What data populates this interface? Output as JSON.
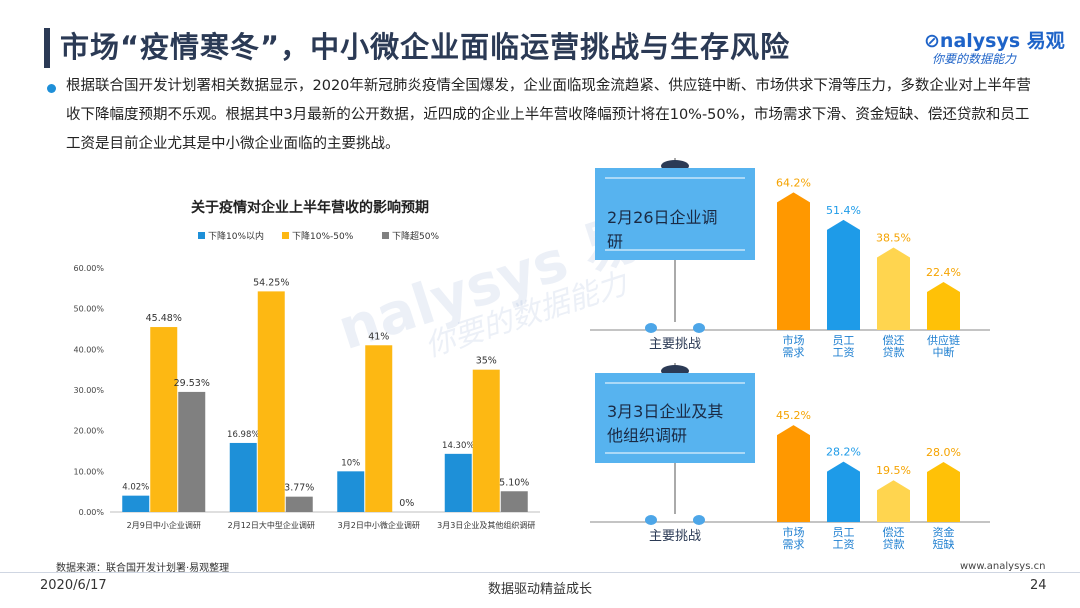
{
  "title": "市场“疫情寒冬”，中小微企业面临运营挑战与生存风险",
  "logo": {
    "brand_prefix": "nalysys",
    "brand_cn": "易观",
    "slogan": "你要的数据能力"
  },
  "paragraph": "根据联合国开发计划署相关数据显示，2020年新冠肺炎疫情全国爆发，企业面临现金流趋紧、供应链中断、市场供求下滑等压力，多数企业对上半年营收下降幅度预期不乐观。根据其中3月最新的公开数据，近四成的企业上半年营收降幅预计将在10%-50%，市场需求下滑、资金短缺、偿还贷款和员工工资是目前企业尤其是中小微企业面临的主要挑战。",
  "watermark": {
    "text1": "nalysys 易观",
    "text2": "你要的数据能力"
  },
  "chart_data": [
    {
      "type": "bar",
      "title": "关于疫情对企业上半年营收的影响预期",
      "categories": [
        "2月9日中小企业调研",
        "2月12日大中型企业调研",
        "3月2日中小微企业调研",
        "3月3日企业及其他组织调研"
      ],
      "series": [
        {
          "name": "下降10%以内",
          "color": "#1e90d8",
          "values": [
            4.02,
            16.98,
            10,
            14.3
          ],
          "labels": [
            "4.02%",
            "16.98%",
            "10%",
            "14.30%"
          ]
        },
        {
          "name": "下降10%-50%",
          "color": "#fdb813",
          "values": [
            45.48,
            54.25,
            41,
            35
          ],
          "labels": [
            "45.48%",
            "54.25%",
            "41%",
            "35%"
          ]
        },
        {
          "name": "下降超50%",
          "color": "#808080",
          "values": [
            29.53,
            3.77,
            0,
            5.1
          ],
          "labels": [
            "29.53%",
            "3.77%",
            "0%",
            "5.10%"
          ]
        }
      ],
      "yticks": [
        "0.00%",
        "10.00%",
        "20.00%",
        "30.00%",
        "40.00%",
        "50.00%",
        "60.00%"
      ],
      "ylim": [
        0,
        60
      ]
    },
    {
      "type": "bar",
      "panel_title": "2月26日企业调研",
      "axis_label": "主要挑战",
      "categories": [
        "市场需求",
        "员工工资",
        "偿还贷款",
        "供应链中断"
      ],
      "category_lines": [
        [
          "市场",
          "需求"
        ],
        [
          "员工",
          "工资"
        ],
        [
          "偿还",
          "贷款"
        ],
        [
          "供应链",
          "中断"
        ]
      ],
      "values": [
        64.2,
        51.4,
        38.5,
        22.4
      ],
      "labels": [
        "64.2%",
        "51.4%",
        "38.5%",
        "22.4%"
      ],
      "colors": [
        "#ff9800",
        "#1e9be8",
        "#ffd54f",
        "#ffc107"
      ],
      "ylim": [
        0,
        70
      ]
    },
    {
      "type": "bar",
      "panel_title": "3月3日企业及其他组织调研",
      "axis_label": "主要挑战",
      "categories": [
        "市场需求",
        "员工工资",
        "偿还贷款",
        "资金短缺"
      ],
      "category_lines": [
        [
          "市场",
          "需求"
        ],
        [
          "员工",
          "工资"
        ],
        [
          "偿还",
          "贷款"
        ],
        [
          "资金",
          "短缺"
        ]
      ],
      "values": [
        45.2,
        28.2,
        19.5,
        28.0
      ],
      "labels": [
        "45.2%",
        "28.2%",
        "19.5%",
        "28.0%"
      ],
      "colors": [
        "#ff9800",
        "#1e9be8",
        "#ffd54f",
        "#ffc107"
      ],
      "ylim": [
        0,
        70
      ]
    }
  ],
  "footer": {
    "source": "数据来源：联合国开发计划署·易观整理",
    "site": "www.analysys.cn",
    "date": "2020/6/17",
    "slogan": "数据驱动精益成长",
    "page": "24"
  }
}
